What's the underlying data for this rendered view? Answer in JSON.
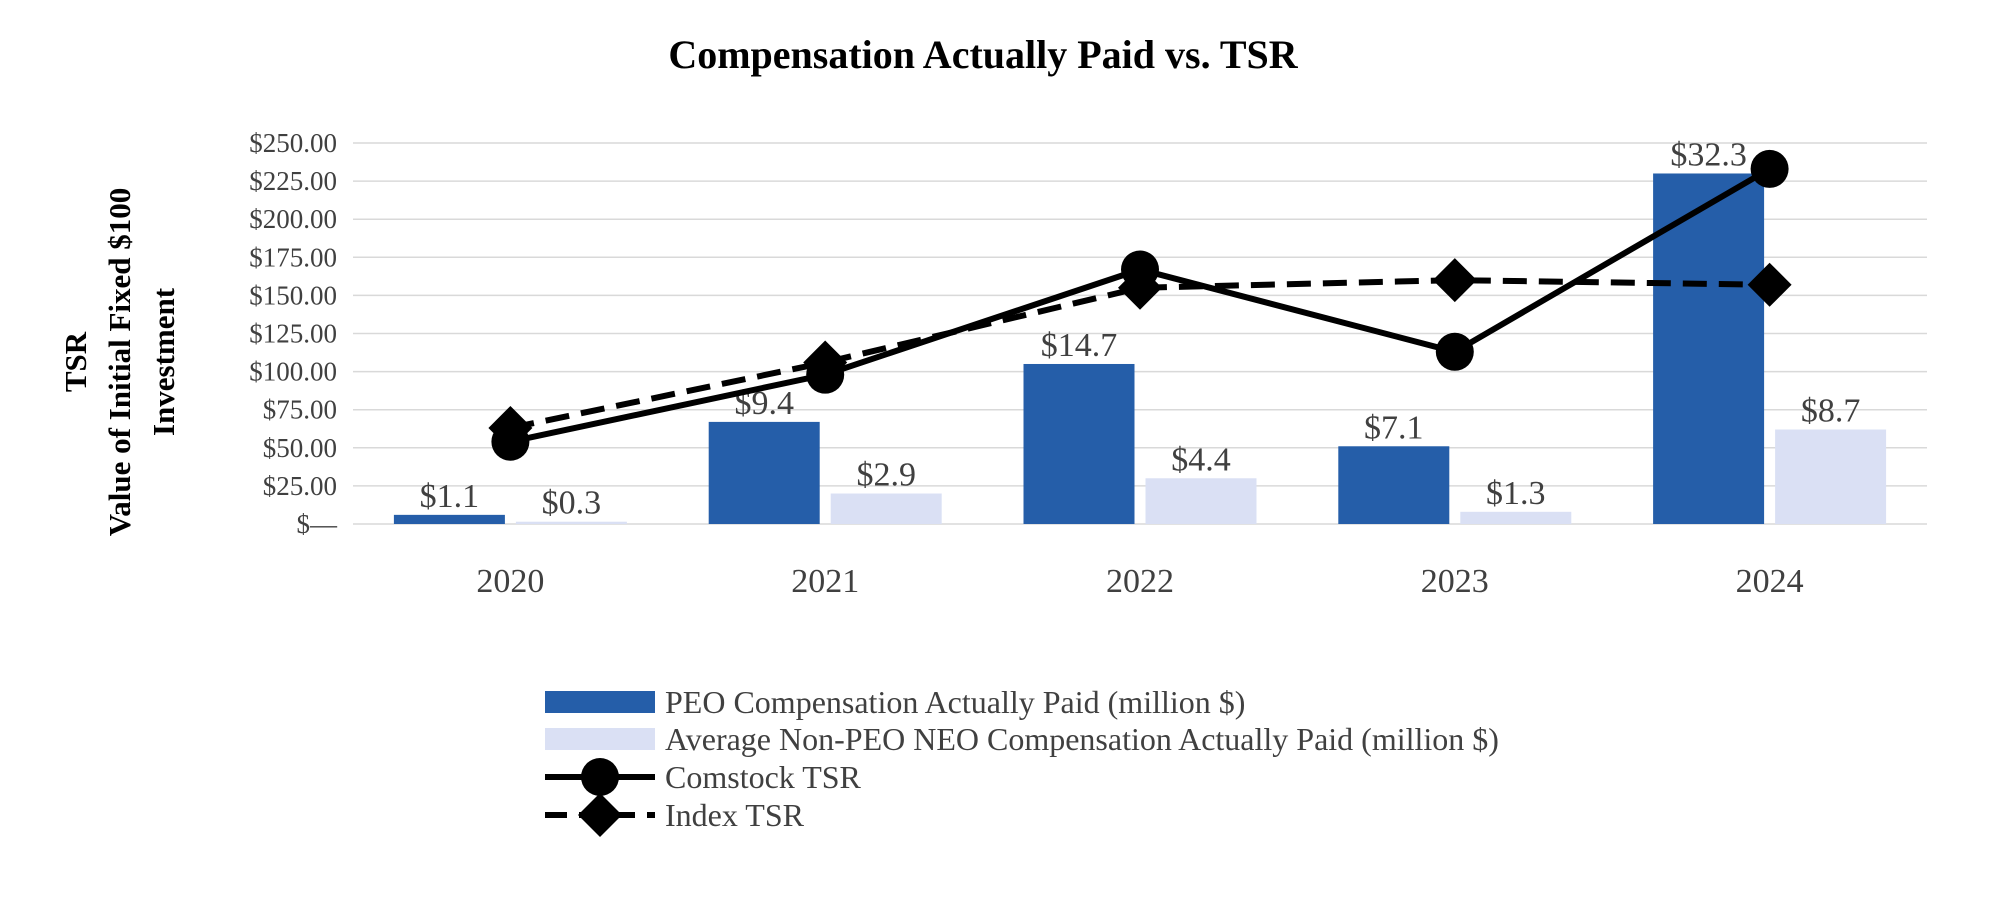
{
  "chart_data": {
    "type": "bar",
    "title": "Compensation Actually Paid vs. TSR",
    "ylabel_lines": [
      "TSR",
      "Value of Initial Fixed $100",
      "Investment"
    ],
    "xlabel": "",
    "categories": [
      "2020",
      "2021",
      "2022",
      "2023",
      "2024"
    ],
    "ylim": [
      0,
      250
    ],
    "yticks": [
      0,
      25,
      50,
      75,
      100,
      125,
      150,
      175,
      200,
      225,
      250
    ],
    "ytick_labels": [
      "$—",
      "$25.00",
      "$50.00",
      "$75.00",
      "$100.00",
      "$125.00",
      "$150.00",
      "$175.00",
      "$200.00",
      "$225.00",
      "$250.00"
    ],
    "grid": true,
    "legend_position": "bottom",
    "bar_series": [
      {
        "name": "PEO Compensation Actually Paid (million $)",
        "color": "#255ea9",
        "axis_values": [
          6,
          67,
          105,
          51,
          230
        ],
        "labels": [
          "$1.1",
          "$9.4",
          "$14.7",
          "$7.1",
          "$32.3"
        ]
      },
      {
        "name": "Average Non-PEO NEO Compensation Actually Paid (million $)",
        "color": "#dae0f4",
        "axis_values": [
          1.5,
          20,
          30,
          8,
          62
        ],
        "labels": [
          "$0.3",
          "$2.9",
          "$4.4",
          "$1.3",
          "$8.7"
        ]
      }
    ],
    "line_series": [
      {
        "name": "Comstock TSR",
        "color": "#000000",
        "style": "solid",
        "marker": "circle",
        "values": [
          54,
          98,
          167,
          113,
          233
        ]
      },
      {
        "name": "Index TSR",
        "color": "#000000",
        "style": "dashed",
        "marker": "diamond",
        "values": [
          63,
          106,
          155,
          160,
          157
        ]
      }
    ]
  }
}
